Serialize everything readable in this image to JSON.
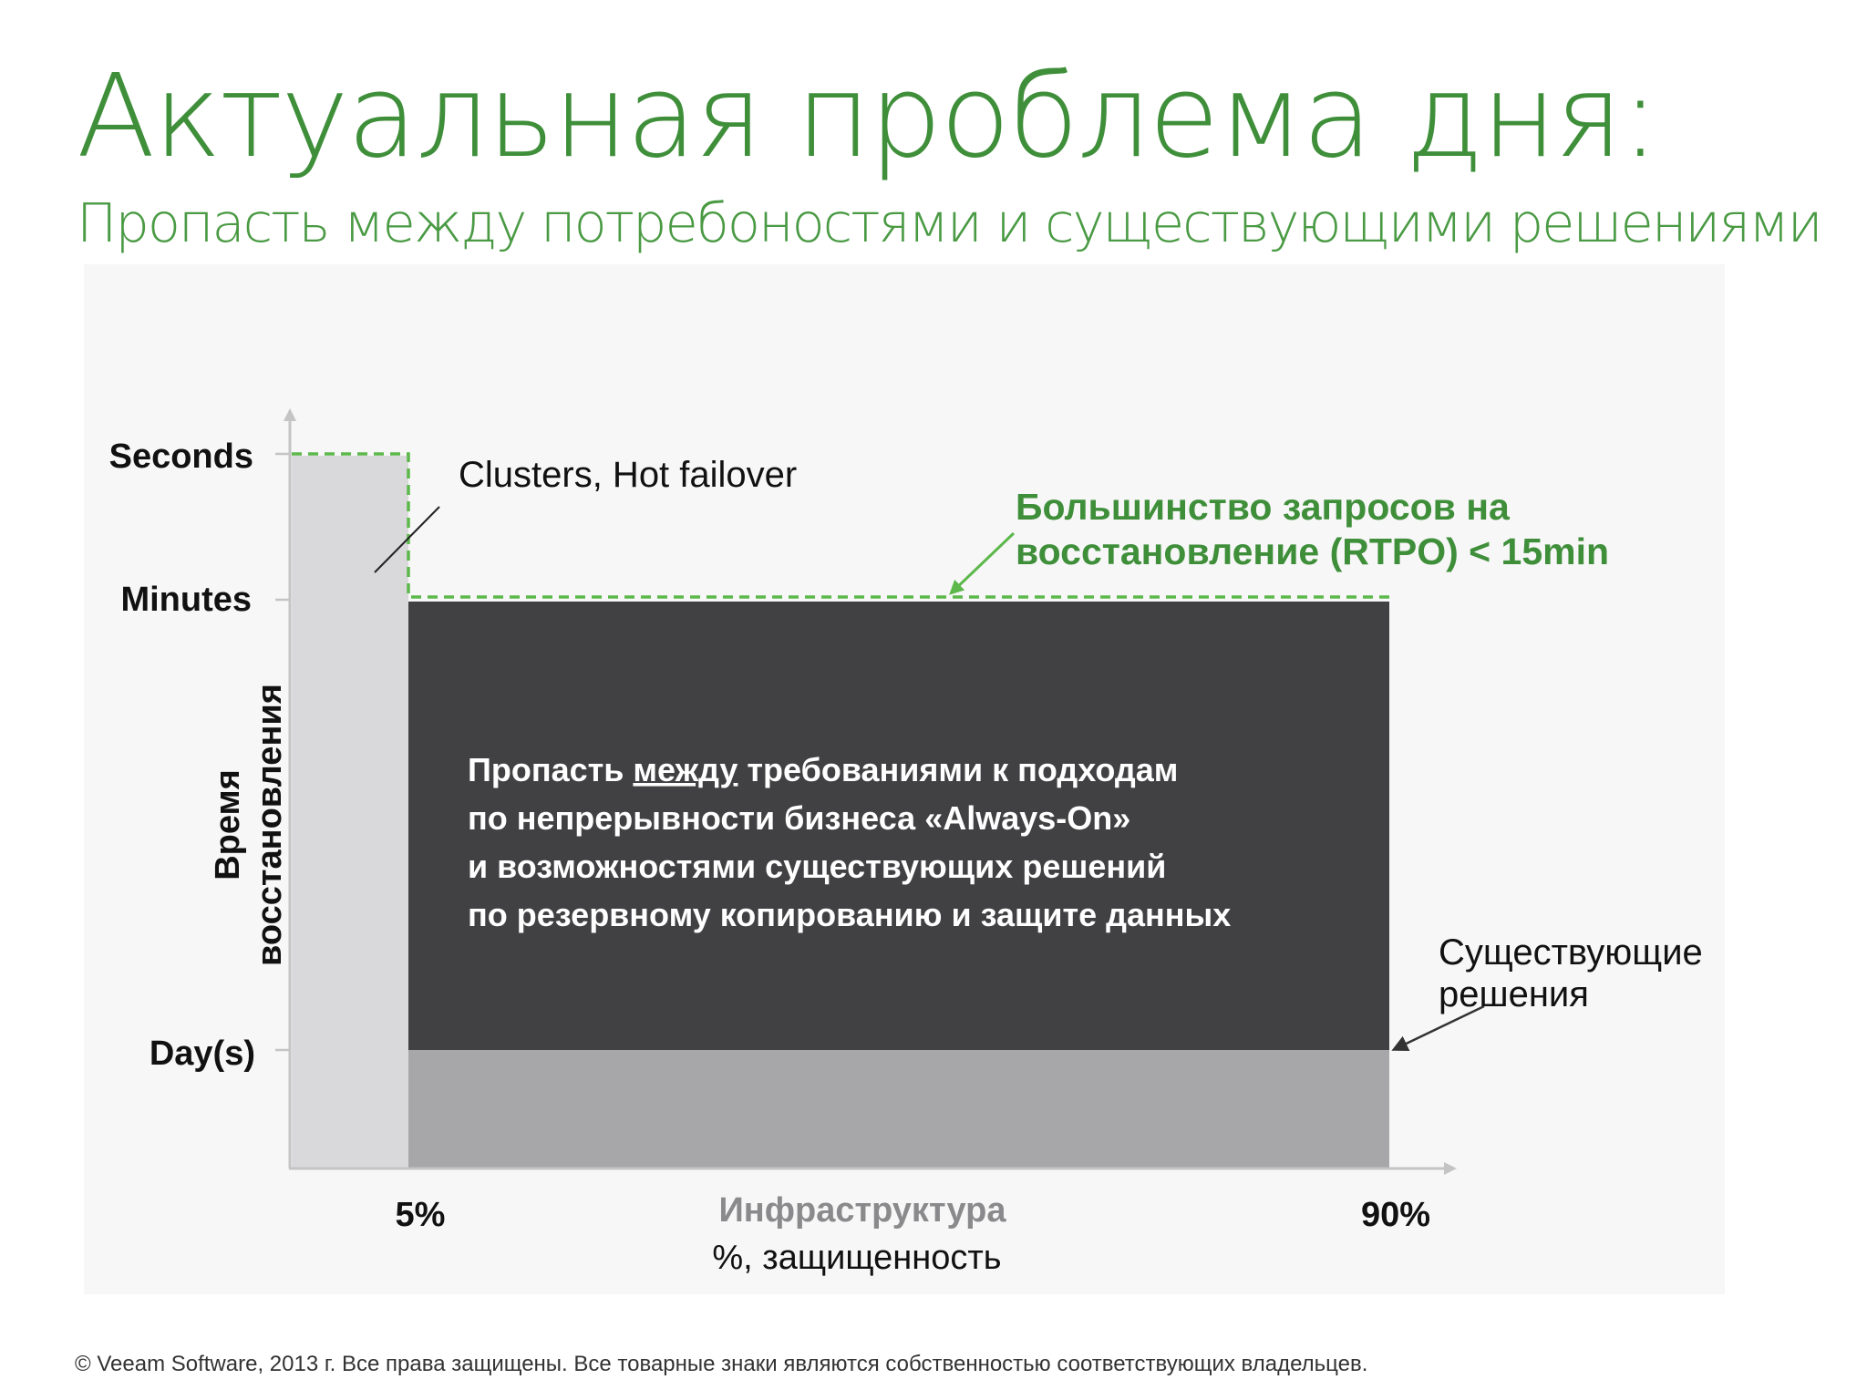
{
  "slide": {
    "title": "Актуальная проблема дня:",
    "subtitle": "Пропасть между потребоностями и существующими решениями",
    "footer": "© Veeam Software, 2013 г. Все права защищены. Все товарные знаки являются собственностью соответствующих владельцев."
  },
  "diagram": {
    "y_axis": {
      "label_line1": "Время",
      "label_line2": "восстановления",
      "levels": [
        "Seconds",
        "Minutes",
        "Day(s)"
      ]
    },
    "x_axis": {
      "tick_start": "5%",
      "tick_end": "90%",
      "label_line1": "Инфраструктура",
      "label_line2": "%, защищенность"
    },
    "annotations": {
      "clusters": "Clusters, Hot failover",
      "rtpo_line1": "Большинство запросов на",
      "rtpo_line2": "восстановление (RTPO) < 15min",
      "existing_line1": "Существующие",
      "existing_line2": "решения"
    },
    "gap_text": {
      "line1_start": "Пропасть ",
      "line1_underlined": "между",
      "line1_end": " требованиями к подходам",
      "line2": "по непрерывности бизнеса «Always-On»",
      "line3": "и возможностями существующих решений",
      "line4": "по резервному копированию и защите данных"
    }
  },
  "colors": {
    "accent_green": "#3f8f3a",
    "dashed_green": "#5cb84a",
    "gap_dark": "#414042",
    "existing_gray": "#a7a6a8",
    "cluster_light": "#d9d8da",
    "axis_gray": "#c4c4c4"
  }
}
